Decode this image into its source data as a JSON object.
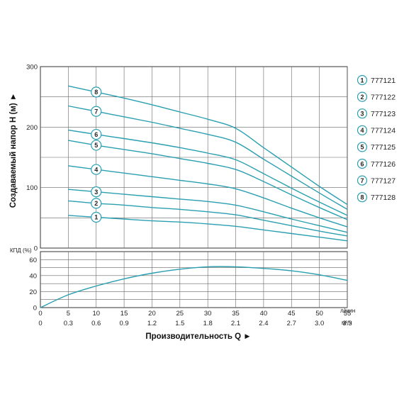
{
  "chart_data": [
    {
      "type": "line",
      "panel": "head",
      "ylabel": "Создаваемый напор Н (м) ►",
      "ylim": [
        0,
        300
      ],
      "yticks": [
        "0",
        "100",
        "200",
        "300"
      ],
      "xlim": [
        0,
        55
      ],
      "grid": true,
      "accent": "#2a9fb1",
      "series": [
        {
          "name": "1",
          "x": [
            5,
            10,
            15,
            20,
            25,
            30,
            35,
            40,
            45,
            50,
            55
          ],
          "values": [
            54,
            51,
            48,
            45,
            43,
            40,
            36,
            30,
            24,
            18,
            12
          ]
        },
        {
          "name": "2",
          "x": [
            5,
            10,
            15,
            20,
            25,
            30,
            35,
            40,
            45,
            50,
            55
          ],
          "values": [
            78,
            74,
            71,
            67,
            64,
            60,
            55,
            46,
            37,
            28,
            20
          ]
        },
        {
          "name": "3",
          "x": [
            5,
            10,
            15,
            20,
            25,
            30,
            35,
            40,
            45,
            50,
            55
          ],
          "values": [
            97,
            93,
            89,
            85,
            81,
            77,
            71,
            60,
            48,
            37,
            26
          ]
        },
        {
          "name": "4",
          "x": [
            5,
            10,
            15,
            20,
            25,
            30,
            35,
            40,
            45,
            50,
            55
          ],
          "values": [
            136,
            130,
            124,
            118,
            112,
            106,
            98,
            83,
            66,
            50,
            35
          ]
        },
        {
          "name": "5",
          "x": [
            5,
            10,
            15,
            20,
            25,
            30,
            35,
            40,
            45,
            50,
            55
          ],
          "values": [
            178,
            170,
            163,
            156,
            148,
            140,
            130,
            110,
            88,
            67,
            47
          ]
        },
        {
          "name": "6",
          "x": [
            5,
            10,
            15,
            20,
            25,
            30,
            35,
            40,
            45,
            50,
            55
          ],
          "values": [
            195,
            188,
            181,
            174,
            166,
            157,
            146,
            123,
            99,
            76,
            54
          ]
        },
        {
          "name": "7",
          "x": [
            5,
            10,
            15,
            20,
            25,
            30,
            35,
            40,
            45,
            50,
            55
          ],
          "values": [
            235,
            226,
            217,
            208,
            198,
            188,
            175,
            147,
            119,
            91,
            64
          ]
        },
        {
          "name": "8",
          "x": [
            5,
            10,
            15,
            20,
            25,
            30,
            35,
            40,
            45,
            50,
            55
          ],
          "values": [
            268,
            258,
            248,
            237,
            225,
            213,
            198,
            166,
            134,
            102,
            72
          ]
        }
      ]
    },
    {
      "type": "line",
      "panel": "efficiency",
      "ylabel": "КПД (%)",
      "ylim": [
        0,
        70
      ],
      "yticks": [
        "0",
        "20",
        "40",
        "60"
      ],
      "xlim": [
        0,
        55
      ],
      "xticks_lmin": [
        "0",
        "5",
        "10",
        "15",
        "20",
        "25",
        "30",
        "35",
        "40",
        "45",
        "50",
        "55"
      ],
      "xticks_m3h": [
        "0",
        "0.3",
        "0.6",
        "0.9",
        "1.2",
        "1.5",
        "1.8",
        "2.1",
        "2.4",
        "2.7",
        "3.0",
        "3.3"
      ],
      "xunit_lmin": "л/мин",
      "xunit_m3h": "м³/ч",
      "xlabel": "Производительность Q ►",
      "grid": true,
      "series": [
        {
          "x": [
            0,
            5,
            10,
            15,
            20,
            25,
            30,
            35,
            40,
            45,
            50,
            55
          ],
          "values": [
            0,
            16,
            27,
            36,
            43,
            48,
            51,
            51,
            49,
            46,
            41,
            34
          ]
        }
      ]
    }
  ],
  "legend": {
    "items": [
      {
        "num": "1",
        "label": "777121"
      },
      {
        "num": "2",
        "label": "777122"
      },
      {
        "num": "3",
        "label": "777123"
      },
      {
        "num": "4",
        "label": "777124"
      },
      {
        "num": "5",
        "label": "777125"
      },
      {
        "num": "6",
        "label": "777126"
      },
      {
        "num": "7",
        "label": "777127"
      },
      {
        "num": "8",
        "label": "777128"
      }
    ]
  }
}
